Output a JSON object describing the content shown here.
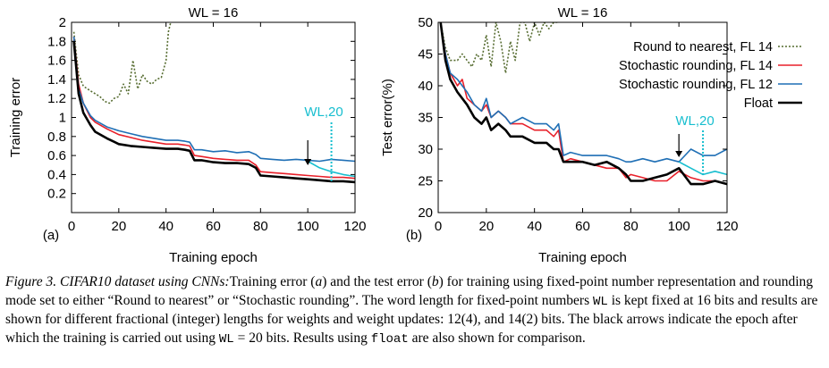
{
  "chart_data": [
    {
      "panel": "(a)",
      "type": "line",
      "title": "WL = 16",
      "xlabel": "Training epoch",
      "ylabel": "Training error",
      "xlim": [
        0,
        120
      ],
      "ylim": [
        0.0,
        2.0
      ],
      "xticks": [
        "0",
        "20",
        "40",
        "60",
        "80",
        "100",
        "120"
      ],
      "yticks": [
        "0.2",
        "0.4",
        "0.6",
        "0.8",
        "1",
        "1.2",
        "1.4",
        "1.6",
        "1.8",
        "2"
      ],
      "annotation": "WL,20",
      "arrow_x": 100,
      "series": [
        {
          "name": "Round to nearest, FL 14",
          "color": "#556b2f",
          "dash": "2,2",
          "x": [
            1,
            3,
            5,
            8,
            10,
            12,
            14,
            16,
            18,
            20,
            22,
            24,
            26,
            28,
            30,
            32,
            34,
            36,
            38,
            40,
            41,
            42
          ],
          "y": [
            1.9,
            1.45,
            1.33,
            1.28,
            1.25,
            1.22,
            1.17,
            1.15,
            1.2,
            1.22,
            1.35,
            1.25,
            1.6,
            1.3,
            1.45,
            1.38,
            1.35,
            1.4,
            1.42,
            1.6,
            1.9,
            2.05
          ]
        },
        {
          "name": "Stochastic rounding, FL 14",
          "color": "#e8202a",
          "dash": "",
          "x": [
            1,
            3,
            5,
            8,
            10,
            15,
            20,
            25,
            30,
            35,
            40,
            45,
            48,
            50,
            52,
            55,
            60,
            65,
            70,
            75,
            78,
            80,
            85,
            90,
            95,
            100,
            105,
            110,
            115,
            120
          ],
          "y": [
            1.85,
            1.35,
            1.15,
            1.0,
            0.95,
            0.88,
            0.82,
            0.79,
            0.76,
            0.74,
            0.72,
            0.72,
            0.71,
            0.7,
            0.6,
            0.59,
            0.57,
            0.56,
            0.55,
            0.55,
            0.5,
            0.43,
            0.42,
            0.41,
            0.4,
            0.39,
            0.38,
            0.37,
            0.37,
            0.36
          ]
        },
        {
          "name": "Stochastic rounding, FL 12",
          "color": "#1f6fb5",
          "dash": "",
          "x": [
            1,
            3,
            5,
            8,
            10,
            15,
            20,
            25,
            30,
            35,
            40,
            45,
            48,
            50,
            52,
            55,
            60,
            65,
            70,
            75,
            78,
            80,
            85,
            90,
            95,
            100,
            105,
            110,
            115,
            120
          ],
          "y": [
            1.85,
            1.3,
            1.15,
            1.02,
            0.97,
            0.9,
            0.86,
            0.83,
            0.8,
            0.78,
            0.76,
            0.76,
            0.75,
            0.74,
            0.66,
            0.66,
            0.64,
            0.65,
            0.63,
            0.64,
            0.61,
            0.57,
            0.56,
            0.55,
            0.56,
            0.55,
            0.54,
            0.56,
            0.55,
            0.54
          ]
        },
        {
          "name": "Float",
          "color": "#000000",
          "dash": "",
          "x": [
            1,
            3,
            5,
            8,
            10,
            15,
            20,
            25,
            30,
            35,
            40,
            45,
            48,
            50,
            52,
            55,
            60,
            65,
            70,
            75,
            78,
            80,
            85,
            90,
            95,
            100,
            105,
            110,
            115,
            120
          ],
          "y": [
            1.8,
            1.25,
            1.05,
            0.92,
            0.85,
            0.78,
            0.72,
            0.7,
            0.69,
            0.68,
            0.67,
            0.67,
            0.66,
            0.65,
            0.55,
            0.55,
            0.53,
            0.52,
            0.52,
            0.51,
            0.47,
            0.39,
            0.38,
            0.37,
            0.36,
            0.35,
            0.34,
            0.33,
            0.33,
            0.32
          ]
        },
        {
          "name": "WL,20 continuation",
          "color": "#17becf",
          "dash": "",
          "x": [
            100,
            105,
            110,
            115,
            120
          ],
          "y": [
            0.54,
            0.47,
            0.43,
            0.4,
            0.38
          ]
        }
      ]
    },
    {
      "panel": "(b)",
      "type": "line",
      "title": "WL = 16",
      "xlabel": "Training epoch",
      "ylabel": "Test error(%)",
      "xlim": [
        0,
        120
      ],
      "ylim": [
        20,
        50
      ],
      "xticks": [
        "0",
        "20",
        "40",
        "60",
        "80",
        "100",
        "120"
      ],
      "yticks": [
        "20",
        "25",
        "30",
        "35",
        "40",
        "45",
        "50"
      ],
      "annotation": "WL,20",
      "arrow_x": 100,
      "legend": "top-right",
      "series": [
        {
          "name": "Round to nearest, FL 14",
          "color": "#556b2f",
          "dash": "2,2",
          "x": [
            1,
            3,
            5,
            8,
            10,
            12,
            14,
            16,
            18,
            20,
            22,
            24,
            26,
            28,
            30,
            32,
            34,
            36,
            38,
            40,
            42,
            44,
            46,
            48,
            50
          ],
          "y": [
            50,
            46,
            44,
            44,
            45,
            44,
            43,
            45,
            44,
            48,
            43,
            51,
            47,
            42,
            47,
            44,
            50,
            52,
            47,
            51,
            48,
            53,
            49,
            52,
            51
          ]
        },
        {
          "name": "Stochastic rounding, FL 14",
          "color": "#e8202a",
          "dash": "",
          "x": [
            1,
            3,
            5,
            8,
            10,
            12,
            15,
            18,
            20,
            22,
            25,
            28,
            30,
            35,
            40,
            45,
            48,
            50,
            52,
            55,
            60,
            65,
            70,
            75,
            78,
            80,
            85,
            90,
            95,
            100,
            105,
            110,
            115,
            120
          ],
          "y": [
            50,
            45,
            42,
            40,
            41,
            38,
            37,
            36,
            37,
            35,
            36,
            35,
            34,
            34,
            33,
            33,
            32,
            33,
            28,
            28.5,
            28,
            27.5,
            27,
            27,
            25.5,
            26,
            25.5,
            25,
            25,
            26.5,
            25.5,
            25,
            25,
            24.5
          ]
        },
        {
          "name": "Stochastic rounding, FL 12",
          "color": "#1f6fb5",
          "dash": "",
          "x": [
            1,
            3,
            5,
            8,
            10,
            12,
            15,
            18,
            20,
            22,
            25,
            28,
            30,
            35,
            40,
            45,
            48,
            50,
            52,
            55,
            60,
            65,
            70,
            75,
            78,
            80,
            85,
            90,
            95,
            100,
            105,
            110,
            115,
            120
          ],
          "y": [
            50,
            45,
            42,
            41,
            40,
            39,
            37,
            36,
            38,
            35,
            36,
            35,
            34,
            35,
            34,
            34,
            33,
            34,
            29,
            29.5,
            29,
            29,
            29,
            28.5,
            28,
            28,
            28.5,
            28,
            28.5,
            28,
            30,
            29,
            29,
            30
          ]
        },
        {
          "name": "Float",
          "color": "#000000",
          "dash": "",
          "x": [
            1,
            3,
            5,
            8,
            10,
            12,
            15,
            18,
            20,
            22,
            25,
            28,
            30,
            35,
            40,
            45,
            48,
            50,
            52,
            55,
            60,
            65,
            70,
            75,
            78,
            80,
            85,
            90,
            95,
            100,
            105,
            110,
            115,
            120
          ],
          "y": [
            50,
            44,
            41,
            39,
            38,
            37,
            35,
            34,
            35,
            33,
            34,
            33,
            32,
            32,
            31,
            31,
            30,
            30,
            28,
            28,
            28,
            27.5,
            28,
            27,
            26,
            25,
            25,
            25.5,
            26,
            27,
            24.5,
            24.5,
            25,
            24.5
          ]
        },
        {
          "name": "WL,20 continuation",
          "color": "#17becf",
          "dash": "",
          "x": [
            100,
            105,
            110,
            115,
            120
          ],
          "y": [
            28,
            27,
            26,
            26.5,
            26
          ]
        }
      ]
    }
  ],
  "caption": {
    "fig_label": "Figure 3. CIFAR10 dataset using CNNs:",
    "t1": "Training error (",
    "a": "a",
    "t2": ") and the test error (",
    "b": "b",
    "t3": ") for training using fixed-point number representation and rounding mode set to either “Round to nearest” or “Stochastic rounding”. The word length for fixed-point numbers ",
    "wl1": "WL",
    "t4": " is kept fixed at 16 bits and results are shown for different fractional (integer) lengths for weights and weight updates: 12(4), and 14(2) bits. The black arrows indicate the epoch after which the training is carried out using ",
    "wl2": "WL",
    "t5": " = 20 bits. Results using ",
    "float": "float",
    "t6": " are also shown for comparison."
  }
}
